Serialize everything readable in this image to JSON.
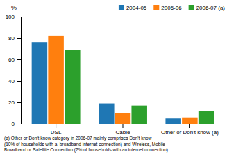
{
  "chart_data": {
    "type": "bar",
    "categories": [
      "DSL",
      "Cable",
      "Other or Don't know (a)"
    ],
    "series": [
      {
        "name": "2004-05",
        "values": [
          76,
          19,
          5
        ]
      },
      {
        "name": "2005-06",
        "values": [
          82,
          10,
          6
        ]
      },
      {
        "name": "2006-07 (a)",
        "values": [
          69,
          17,
          12
        ]
      }
    ],
    "y_label": "%",
    "ylim": [
      0,
      100
    ],
    "yticks": [
      0,
      20,
      40,
      60,
      80,
      100
    ],
    "grid": false,
    "legend": "top-right",
    "annotations": [
      "(a) Other or Don't know category in 2006-07 mainly comprises Don't know",
      "(10% of households with a  broadband internet connection) and Wireless, Mobile",
      "Broadband or Satellite Connection (2% of households with an internet connection)."
    ]
  }
}
